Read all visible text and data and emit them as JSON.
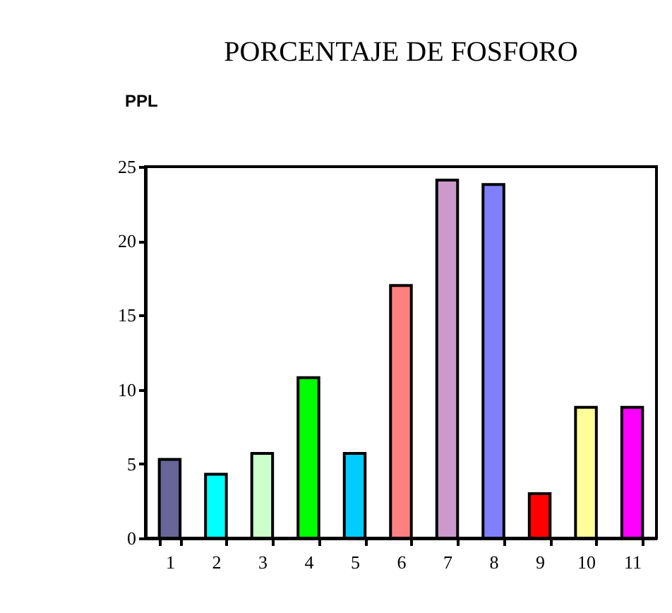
{
  "chart_data": {
    "type": "bar",
    "title": "PORCENTAJE DE FOSFORO",
    "ylabel": "PPL",
    "categories": [
      "1",
      "2",
      "3",
      "4",
      "5",
      "6",
      "7",
      "8",
      "9",
      "10",
      "11"
    ],
    "values": [
      5.3,
      4.3,
      5.7,
      10.8,
      5.7,
      17.0,
      24.1,
      23.8,
      3.0,
      8.8,
      8.8
    ],
    "colors": [
      "#666699",
      "#00ffff",
      "#ccffcc",
      "#00ff00",
      "#00ccff",
      "#ff8080",
      "#cc99cc",
      "#8080ff",
      "#ff0000",
      "#ffff99",
      "#ff00ff"
    ],
    "ylim": [
      0,
      25
    ],
    "yticks": [
      0,
      5,
      10,
      15,
      20,
      25
    ],
    "grid": false
  }
}
